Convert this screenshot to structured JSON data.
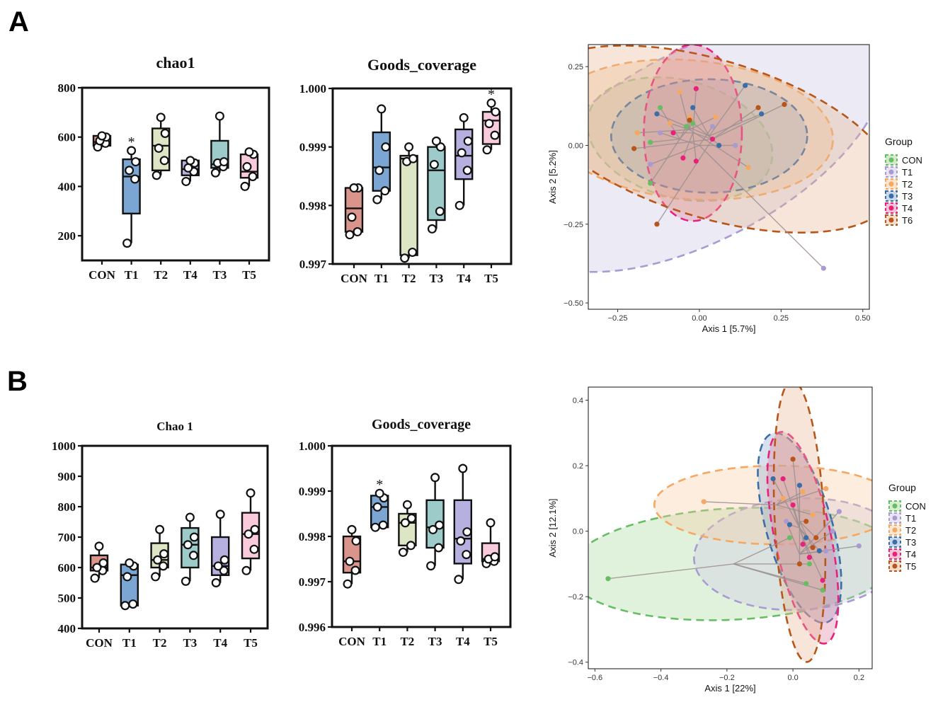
{
  "panels": [
    {
      "letter": "A"
    },
    {
      "letter": "B"
    }
  ],
  "chart_data": [
    {
      "type": "box",
      "title": "chao1",
      "categories": [
        "CON",
        "T1",
        "T2",
        "T4",
        "T3",
        "T5"
      ],
      "ylim": [
        100,
        800
      ],
      "yticks": [
        200,
        400,
        600,
        800
      ],
      "colors": [
        "#D9948C",
        "#7BA6D3",
        "#DCE6C5",
        "#B5B0DF",
        "#9CCBC9",
        "#F8CADB"
      ],
      "boxes": [
        {
          "min": 560,
          "q1": 565,
          "median": 580,
          "q3": 605,
          "max": 610
        },
        {
          "min": 170,
          "q1": 290,
          "median": 440,
          "q3": 510,
          "max": 545
        },
        {
          "min": 445,
          "q1": 465,
          "median": 565,
          "q3": 635,
          "max": 680
        },
        {
          "min": 420,
          "q1": 445,
          "median": 470,
          "q3": 505,
          "max": 510
        },
        {
          "min": 455,
          "q1": 475,
          "median": 490,
          "q3": 585,
          "max": 685
        },
        {
          "min": 400,
          "q1": 435,
          "median": 460,
          "q3": 530,
          "max": 540
        }
      ],
      "points": [
        [
          560,
          575,
          585,
          600,
          605
        ],
        [
          170,
          430,
          465,
          500,
          545
        ],
        [
          445,
          505,
          555,
          615,
          680
        ],
        [
          420,
          460,
          475,
          495,
          505
        ],
        [
          455,
          480,
          495,
          500,
          685
        ],
        [
          400,
          440,
          480,
          530,
          540
        ]
      ],
      "annotations": [
        {
          "category": "T1",
          "text": "*"
        }
      ]
    },
    {
      "type": "box",
      "title": "Goods_coverage",
      "categories": [
        "CON",
        "T1",
        "T2",
        "T3",
        "T4",
        "T5"
      ],
      "ylim": [
        0.997,
        1.0
      ],
      "yticks": [
        0.997,
        0.998,
        0.999,
        1.0
      ],
      "yticklabels": [
        "0.997",
        "0.998",
        "0.999",
        "1.000"
      ],
      "colors": [
        "#D9948C",
        "#7BA6D3",
        "#DCE6C5",
        "#9CCBC9",
        "#B5B0DF",
        "#F8CADB"
      ],
      "boxes": [
        {
          "min": 0.9975,
          "q1": 0.99755,
          "median": 0.99795,
          "q3": 0.9983,
          "max": 0.9983
        },
        {
          "min": 0.9981,
          "q1": 0.99825,
          "median": 0.99865,
          "q3": 0.99925,
          "max": 0.99965
        },
        {
          "min": 0.9971,
          "q1": 0.99715,
          "median": 0.9988,
          "q3": 0.99885,
          "max": 0.999
        },
        {
          "min": 0.9976,
          "q1": 0.99775,
          "median": 0.9986,
          "q3": 0.999,
          "max": 0.9991
        },
        {
          "min": 0.998,
          "q1": 0.99845,
          "median": 0.99885,
          "q3": 0.9993,
          "max": 0.9995
        },
        {
          "min": 0.99895,
          "q1": 0.99905,
          "median": 0.99945,
          "q3": 0.9996,
          "max": 0.99975
        }
      ],
      "points": [
        [
          0.9975,
          0.99755,
          0.9978,
          0.9983,
          0.9983
        ],
        [
          0.9981,
          0.99825,
          0.9986,
          0.999,
          0.99965
        ],
        [
          0.9971,
          0.9972,
          0.99875,
          0.9988,
          0.999
        ],
        [
          0.9976,
          0.9979,
          0.9987,
          0.999,
          0.9991
        ],
        [
          0.998,
          0.9986,
          0.9989,
          0.9991,
          0.9995
        ],
        [
          0.99895,
          0.9992,
          0.9994,
          0.9996,
          0.99975
        ]
      ],
      "annotations": [
        {
          "category": "T5",
          "text": "*"
        }
      ]
    },
    {
      "type": "scatter",
      "subtype": "PCoA",
      "xlabel": "Axis 1 [5.7%]",
      "ylabel": "Axis 2 [5.2%]",
      "xlim": [
        -0.34,
        0.52
      ],
      "ylim": [
        -0.52,
        0.32
      ],
      "xticks": [
        -0.25,
        0.0,
        0.25,
        0.5
      ],
      "xticklabels": [
        "−0.25",
        "0.00",
        "0.25",
        "0.50"
      ],
      "yticks": [
        -0.5,
        -0.25,
        0.0,
        0.25
      ],
      "yticklabels": [
        "−0.50",
        "−0.25",
        "0.00",
        "0.25"
      ],
      "legend_title": "Group",
      "legend_position": "right",
      "groups": [
        {
          "name": "CON",
          "color": "#66BD63",
          "fill": "#9CCF8A",
          "centroid": [
            -0.06,
            0.02
          ],
          "ellipse": {
            "rx": 0.18,
            "ry": 0.3,
            "angle_deg": -75
          },
          "points": [
            [
              -0.15,
              -0.12
            ],
            [
              -0.15,
              0.01
            ],
            [
              -0.04,
              0.06
            ],
            [
              -0.02,
              0.07
            ],
            [
              -0.12,
              0.12
            ]
          ]
        },
        {
          "name": "T1",
          "color": "#A99BD2",
          "fill": "#C9C2E3",
          "centroid": [
            0.0,
            0.0
          ],
          "ellipse": {
            "rx": 0.62,
            "ry": 0.3,
            "angle_deg": -28
          },
          "points": [
            [
              0.38,
              -0.39
            ],
            [
              -0.15,
              -0.06
            ],
            [
              -0.12,
              0.04
            ],
            [
              0.11,
              0.0
            ],
            [
              0.04,
              0.06
            ]
          ]
        },
        {
          "name": "T2",
          "color": "#F5A862",
          "fill": "#F5C393",
          "centroid": [
            -0.03,
            0.05
          ],
          "ellipse": {
            "rx": 0.44,
            "ry": 0.22,
            "angle_deg": 5
          },
          "points": [
            [
              -0.19,
              0.04
            ],
            [
              -0.09,
              0.07
            ],
            [
              -0.03,
              0.09
            ],
            [
              0.05,
              0.09
            ],
            [
              0.15,
              -0.07
            ],
            [
              -0.06,
              0.17
            ]
          ]
        },
        {
          "name": "T3",
          "color": "#3B6EA8",
          "fill": "#8AA9CA",
          "centroid": [
            0.03,
            0.03
          ],
          "ellipse": {
            "rx": 0.3,
            "ry": 0.18,
            "angle_deg": 0
          },
          "points": [
            [
              -0.13,
              0.1
            ],
            [
              0.14,
              0.19
            ],
            [
              0.19,
              0.1
            ],
            [
              0.06,
              0.0
            ],
            [
              -0.02,
              0.12
            ]
          ]
        },
        {
          "name": "T4",
          "color": "#E8217A",
          "fill": "#E07BA3",
          "centroid": [
            -0.02,
            0.04
          ],
          "ellipse": {
            "rx": 0.15,
            "ry": 0.28,
            "angle_deg": 0
          },
          "points": [
            [
              -0.01,
              0.18
            ],
            [
              -0.08,
              0.04
            ],
            [
              -0.05,
              -0.04
            ],
            [
              -0.01,
              -0.05
            ],
            [
              0.04,
              0.02
            ]
          ]
        },
        {
          "name": "T6",
          "color": "#B8561A",
          "fill": "#E6B48E",
          "centroid": [
            0.04,
            0.02
          ],
          "ellipse": {
            "rx": 0.58,
            "ry": 0.25,
            "angle_deg": 17
          },
          "points": [
            [
              -0.2,
              -0.01
            ],
            [
              -0.13,
              -0.25
            ],
            [
              0.18,
              0.12
            ],
            [
              0.26,
              0.13
            ],
            [
              -0.03,
              0.08
            ]
          ]
        }
      ]
    },
    {
      "type": "box",
      "title": "Chao 1",
      "categories": [
        "CON",
        "T1",
        "T2",
        "T3",
        "T4",
        "T5"
      ],
      "ylim": [
        400,
        1000
      ],
      "yticks": [
        400,
        500,
        600,
        700,
        800,
        900,
        1000
      ],
      "colors": [
        "#D9948C",
        "#7BA6D3",
        "#DCE6C5",
        "#9CCBC9",
        "#B5B0DF",
        "#F8CADB"
      ],
      "boxes": [
        {
          "min": 565,
          "q1": 590,
          "median": 600,
          "q3": 640,
          "max": 670
        },
        {
          "min": 475,
          "q1": 475,
          "median": 575,
          "q3": 610,
          "max": 615
        },
        {
          "min": 570,
          "q1": 600,
          "median": 625,
          "q3": 680,
          "max": 725
        },
        {
          "min": 555,
          "q1": 600,
          "median": 675,
          "q3": 730,
          "max": 765
        },
        {
          "min": 550,
          "q1": 575,
          "median": 605,
          "q3": 700,
          "max": 775
        },
        {
          "min": 590,
          "q1": 630,
          "median": 710,
          "q3": 780,
          "max": 845
        }
      ],
      "points": [
        [
          565,
          590,
          600,
          615,
          670
        ],
        [
          475,
          480,
          570,
          605,
          615
        ],
        [
          570,
          605,
          625,
          645,
          725
        ],
        [
          555,
          640,
          675,
          700,
          765
        ],
        [
          550,
          590,
          605,
          625,
          775
        ],
        [
          590,
          660,
          710,
          725,
          845
        ]
      ],
      "annotations": []
    },
    {
      "type": "box",
      "title": "Goods_coverage",
      "categories": [
        "CON",
        "T1",
        "T2",
        "T3",
        "T4",
        "T5"
      ],
      "ylim": [
        0.996,
        1.0
      ],
      "yticks": [
        0.996,
        0.997,
        0.998,
        0.999,
        1.0
      ],
      "yticklabels": [
        "0.996",
        "0.997",
        "0.998",
        "0.999",
        "1.000"
      ],
      "colors": [
        "#D9948C",
        "#7BA6D3",
        "#DCE6C5",
        "#9CCBC9",
        "#B5B0DF",
        "#F8CADB"
      ],
      "boxes": [
        {
          "min": 0.99695,
          "q1": 0.9972,
          "median": 0.99745,
          "q3": 0.998,
          "max": 0.99815
        },
        {
          "min": 0.9982,
          "q1": 0.9982,
          "median": 0.99865,
          "q3": 0.9989,
          "max": 0.99895
        },
        {
          "min": 0.99765,
          "q1": 0.9978,
          "median": 0.9983,
          "q3": 0.9985,
          "max": 0.9987
        },
        {
          "min": 0.99735,
          "q1": 0.99775,
          "median": 0.9982,
          "q3": 0.9988,
          "max": 0.9993
        },
        {
          "min": 0.99705,
          "q1": 0.9974,
          "median": 0.99795,
          "q3": 0.9988,
          "max": 0.9995
        },
        {
          "min": 0.9974,
          "q1": 0.99745,
          "median": 0.9975,
          "q3": 0.99785,
          "max": 0.9983
        }
      ],
      "points": [
        [
          0.99695,
          0.99725,
          0.99745,
          0.9979,
          0.99815
        ],
        [
          0.9982,
          0.99825,
          0.99865,
          0.99885,
          0.99895
        ],
        [
          0.99765,
          0.9978,
          0.9983,
          0.9984,
          0.9987
        ],
        [
          0.99735,
          0.99775,
          0.99815,
          0.99825,
          0.9993
        ],
        [
          0.99705,
          0.9976,
          0.9979,
          0.9981,
          0.9995
        ],
        [
          0.9974,
          0.99745,
          0.9975,
          0.99755,
          0.9983
        ]
      ],
      "annotations": [
        {
          "category": "T1",
          "text": "*"
        }
      ]
    },
    {
      "type": "scatter",
      "subtype": "PCoA",
      "xlabel": "Axis 1 [22%]",
      "ylabel": "Axis 2 [12.1%]",
      "xlim": [
        -0.62,
        0.24
      ],
      "ylim": [
        -0.42,
        0.44
      ],
      "xticks": [
        -0.6,
        -0.4,
        -0.2,
        0.0,
        0.2
      ],
      "xticklabels": [
        "−0.6",
        "−0.4",
        "−0.2",
        "0.0",
        "0.2"
      ],
      "yticks": [
        -0.4,
        -0.2,
        0.0,
        0.2,
        0.4
      ],
      "yticklabels": [
        "−0.4",
        "−0.2",
        "0.0",
        "0.2",
        "0.4"
      ],
      "legend_title": "Group",
      "legend_position": "right",
      "groups": [
        {
          "name": "CON",
          "color": "#66BD63",
          "fill": "#A8D99C",
          "centroid": [
            -0.18,
            -0.1
          ],
          "ellipse": {
            "rx": 0.5,
            "ry": 0.17,
            "angle_deg": -3
          },
          "points": [
            [
              -0.56,
              -0.145
            ],
            [
              0.04,
              -0.16
            ],
            [
              -0.01,
              -0.02
            ],
            [
              0.09,
              -0.18
            ],
            [
              0.05,
              -0.1
            ]
          ]
        },
        {
          "name": "T1",
          "color": "#A99BD2",
          "fill": "#CFC8E6",
          "centroid": [
            0.02,
            -0.07
          ],
          "ellipse": {
            "rx": 0.32,
            "ry": 0.17,
            "angle_deg": -3
          },
          "points": [
            [
              0.2,
              -0.045
            ],
            [
              0.14,
              0.06
            ],
            [
              0.1,
              -0.06
            ],
            [
              0.12,
              0.0
            ],
            [
              -0.02,
              0.03
            ]
          ]
        },
        {
          "name": "T2",
          "color": "#F5A862",
          "fill": "#F7CBA2",
          "centroid": [
            -0.05,
            0.08
          ],
          "ellipse": {
            "rx": 0.37,
            "ry": 0.12,
            "angle_deg": 0
          },
          "points": [
            [
              -0.27,
              0.09
            ],
            [
              0.1,
              0.13
            ],
            [
              0.06,
              0.05
            ],
            [
              0.03,
              0.12
            ],
            [
              -0.03,
              0.1
            ]
          ]
        },
        {
          "name": "T3",
          "color": "#3B6EA8",
          "fill": "#8AA9CA",
          "centroid": [
            0.02,
            0.01
          ],
          "ellipse": {
            "rx": 0.1,
            "ry": 0.3,
            "angle_deg": -16
          },
          "points": [
            [
              -0.06,
              0.16
            ],
            [
              -0.01,
              0.02
            ],
            [
              0.02,
              0.14
            ],
            [
              0.04,
              -0.02
            ],
            [
              0.08,
              -0.06
            ]
          ]
        },
        {
          "name": "T4",
          "color": "#E8217A",
          "fill": "#E07BA3",
          "centroid": [
            0.03,
            -0.02
          ],
          "ellipse": {
            "rx": 0.085,
            "ry": 0.33,
            "angle_deg": -12
          },
          "points": [
            [
              -0.03,
              0.16
            ],
            [
              0.0,
              0.08
            ],
            [
              0.03,
              -0.04
            ],
            [
              0.05,
              -0.08
            ],
            [
              0.09,
              -0.15
            ]
          ]
        },
        {
          "name": "T5",
          "color": "#B8561A",
          "fill": "#E6B48E",
          "centroid": [
            0.02,
            0.03
          ],
          "ellipse": {
            "rx": 0.075,
            "ry": 0.43,
            "angle_deg": -3
          },
          "points": [
            [
              0.0,
              0.22
            ],
            [
              0.06,
              -0.05
            ],
            [
              0.04,
              0.03
            ],
            [
              0.02,
              -0.1
            ],
            [
              0.07,
              -0.02
            ]
          ]
        }
      ]
    }
  ]
}
